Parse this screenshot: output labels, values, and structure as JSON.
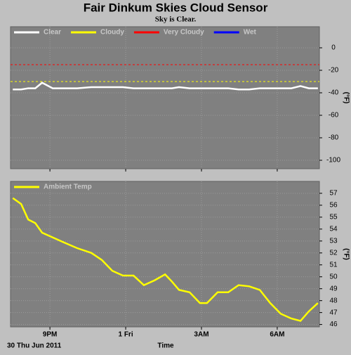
{
  "title": "Fair Dinkum Skies Cloud Sensor",
  "subtitle": "Sky is Clear.",
  "date_label": "30 Thu Jun 2011",
  "x_label": "Time",
  "chart_data": [
    {
      "type": "line",
      "y_label": "(°F)",
      "xlim": [
        19.44,
        31.67
      ],
      "ylim": [
        -107.5,
        18.75
      ],
      "yticks": [
        0,
        -20,
        -40,
        -60,
        -80,
        -100
      ],
      "xticks": [
        {
          "value": 21,
          "label": "9PM"
        },
        {
          "value": 24,
          "label": "1 Fri"
        },
        {
          "value": 27,
          "label": "3AM"
        },
        {
          "value": 30,
          "label": "6AM"
        }
      ],
      "grid": true,
      "x": [
        19.53,
        19.86,
        20.14,
        20.42,
        20.69,
        21.11,
        21.53,
        22.08,
        22.64,
        23.06,
        23.47,
        23.89,
        24.31,
        24.72,
        25.14,
        25.56,
        25.83,
        26.11,
        26.53,
        26.94,
        27.22,
        27.64,
        28.06,
        28.47,
        28.89,
        29.31,
        29.72,
        30.14,
        30.56,
        30.92,
        31.25,
        31.61
      ],
      "series": [
        {
          "name": "Clear",
          "color": "#ffffff",
          "values": [
            -37,
            -37,
            -36,
            -36,
            -31,
            -36,
            -36,
            -36,
            -35,
            -35,
            -35,
            -35,
            -36,
            -36,
            -36,
            -36,
            -36,
            -35,
            -36,
            -36,
            -36,
            -36,
            -36,
            -37,
            -37,
            -36,
            -36,
            -36,
            -36,
            -34,
            -36,
            -36
          ]
        },
        {
          "name": "Cloudy",
          "color": "#ffff00",
          "level": -30
        },
        {
          "name": "Very Cloudy",
          "color": "#ff0000",
          "level": -15
        },
        {
          "name": "Wet",
          "color": "#0000ff"
        }
      ]
    },
    {
      "type": "line",
      "y_label": "(°F)",
      "xlim": [
        19.44,
        31.67
      ],
      "ylim": [
        45.8,
        58
      ],
      "yticks": [
        46,
        47,
        48,
        49,
        50,
        51,
        52,
        53,
        54,
        55,
        56,
        57
      ],
      "xticks": [
        {
          "value": 21,
          "label": "9PM"
        },
        {
          "value": 24,
          "label": "1 Fri"
        },
        {
          "value": 27,
          "label": "3AM"
        },
        {
          "value": 30,
          "label": "6AM"
        }
      ],
      "grid": true,
      "x": [
        19.53,
        19.86,
        20.14,
        20.42,
        20.69,
        21.11,
        21.53,
        22.08,
        22.64,
        23.06,
        23.47,
        23.89,
        24.31,
        24.72,
        25.14,
        25.56,
        25.83,
        26.11,
        26.53,
        26.94,
        27.22,
        27.64,
        28.06,
        28.47,
        28.89,
        29.31,
        29.72,
        30.14,
        30.56,
        30.92,
        31.25,
        31.61
      ],
      "series": [
        {
          "name": "Ambient Temp",
          "color": "#ffff00",
          "values": [
            56.6,
            56.1,
            54.8,
            54.5,
            53.7,
            53.3,
            52.9,
            52.4,
            52.0,
            51.4,
            50.5,
            50.1,
            50.1,
            49.3,
            49.7,
            50.2,
            49.6,
            48.9,
            48.7,
            47.8,
            47.8,
            48.7,
            48.7,
            49.3,
            49.2,
            48.9,
            47.8,
            46.9,
            46.5,
            46.3,
            47.1,
            47.8
          ]
        }
      ]
    }
  ]
}
